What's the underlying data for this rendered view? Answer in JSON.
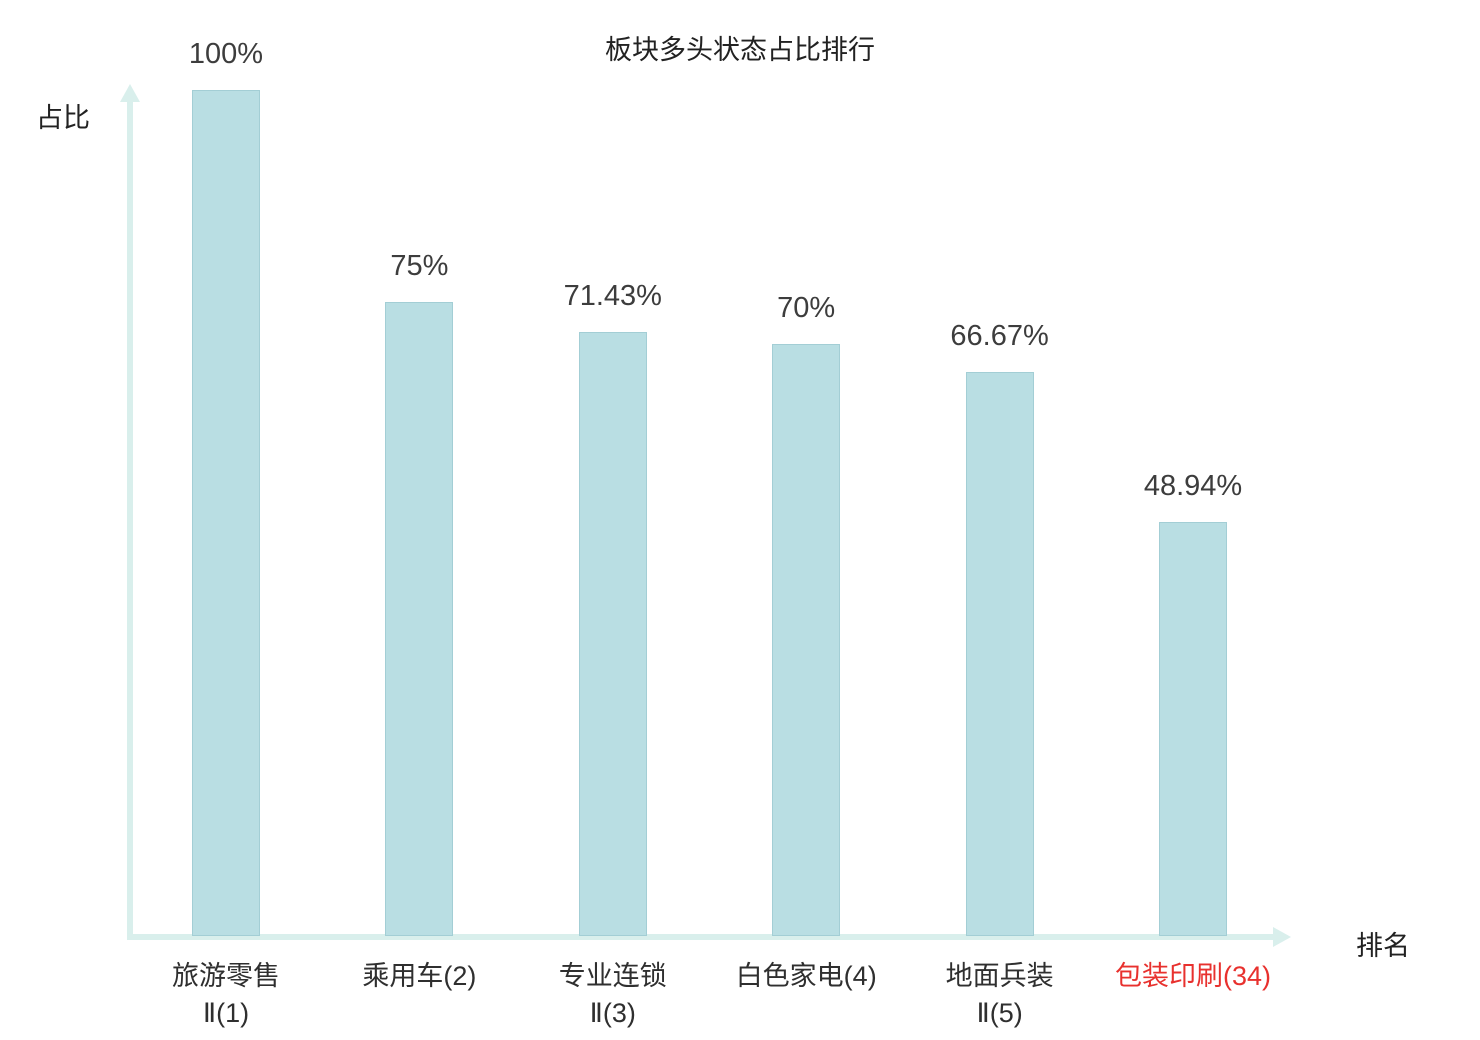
{
  "chart_data": {
    "type": "bar",
    "title": "板块多头状态占比排行",
    "xlabel": "排名",
    "ylabel": "占比",
    "ylim": [
      0,
      100
    ],
    "grid": false,
    "legend_position": "none",
    "categories": [
      "旅游零售Ⅱ(1)",
      "乘用车(2)",
      "专业连锁Ⅱ(3)",
      "白色家电(4)",
      "地面兵装Ⅱ(5)",
      "包装印刷(34)"
    ],
    "values": [
      100,
      75,
      71.43,
      70,
      66.67,
      48.94
    ],
    "value_labels": [
      "100%",
      "75%",
      "71.43%",
      "70%",
      "66.67%",
      "48.94%"
    ],
    "category_lines": [
      [
        "旅游零售",
        "Ⅱ(1)"
      ],
      [
        "乘用车(2)"
      ],
      [
        "专业连锁",
        "Ⅱ(3)"
      ],
      [
        "白色家电(4)"
      ],
      [
        "地面兵装",
        "Ⅱ(5)"
      ],
      [
        "包装印刷(34)"
      ]
    ],
    "highlight_index": 5,
    "colors": {
      "bar_fill": "#b9dee3",
      "bar_border": "#a3ced5",
      "axis": "#d9efec",
      "text": "#3d3d3d",
      "highlight_text": "#e8312e"
    }
  }
}
